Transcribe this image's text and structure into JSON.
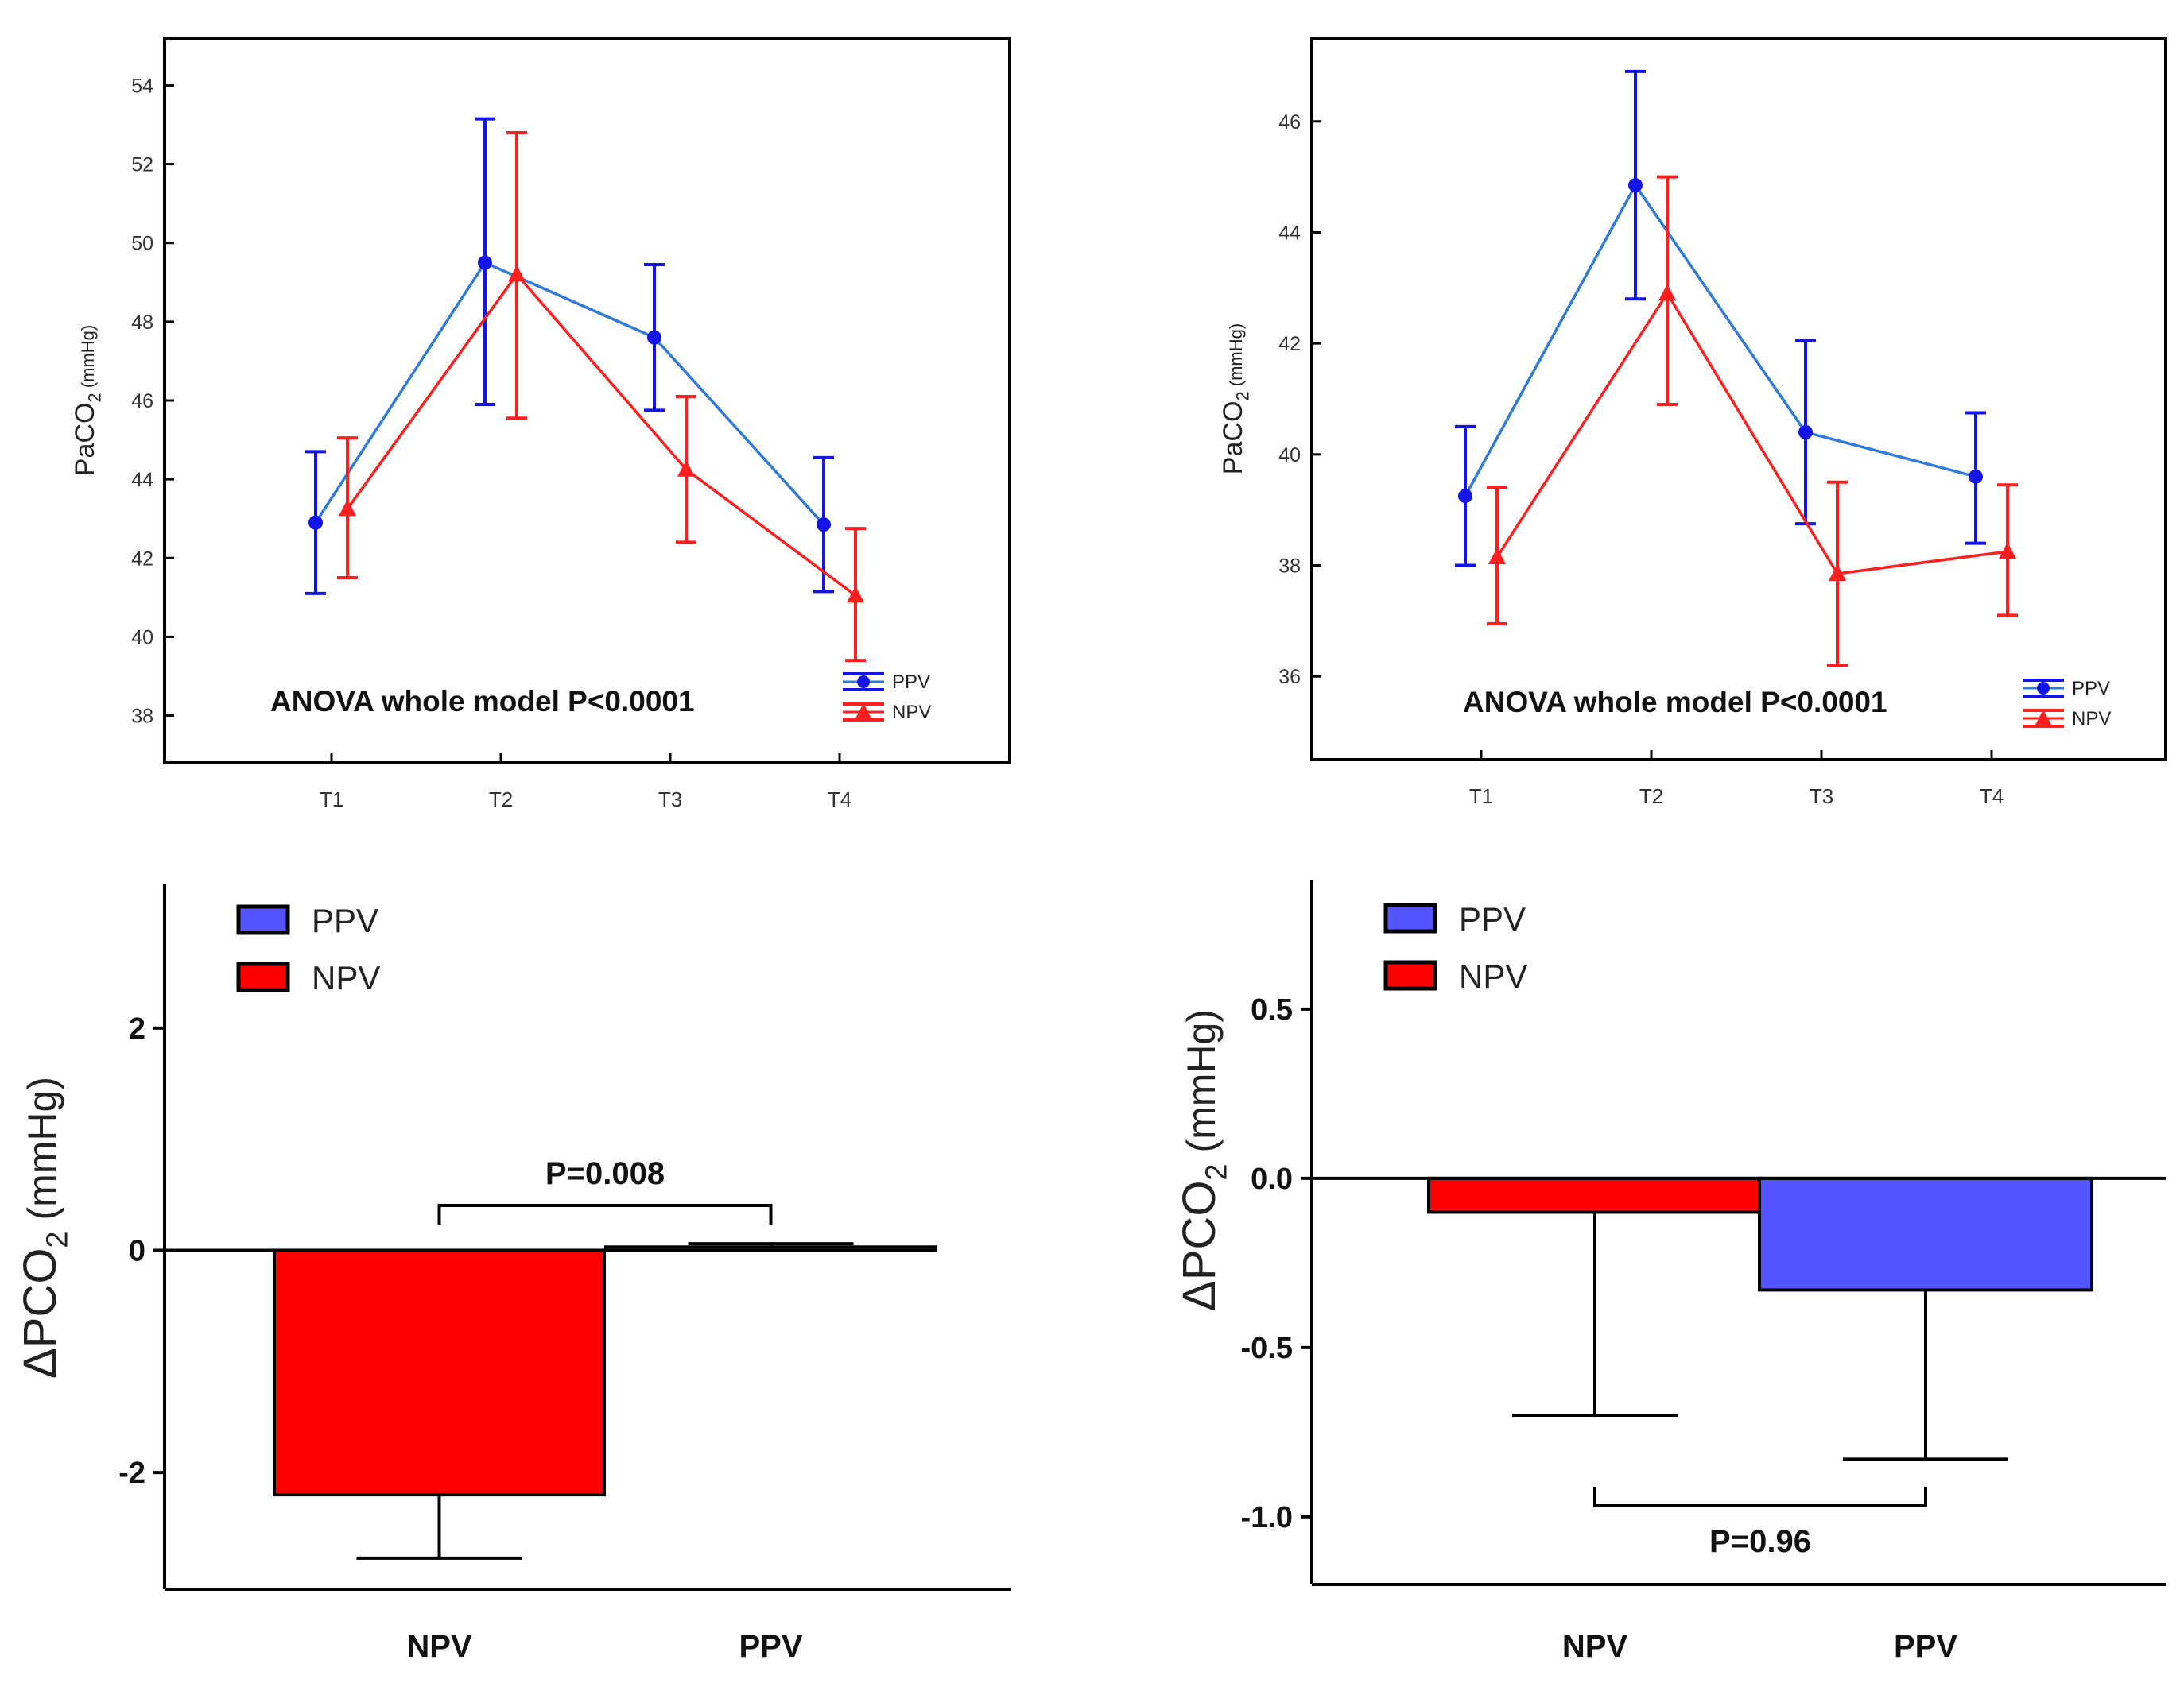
{
  "colors": {
    "ppv_line": "#2f7bdb",
    "ppv_marker": "#1414e6",
    "npv": "#ff1f1f",
    "ppv_bar": "#5555ff",
    "npv_bar": "#ff0000",
    "axis": "#000000"
  },
  "chart_data": [
    {
      "type": "line",
      "panel": "top-left",
      "categories": [
        "T1",
        "T2",
        "T3",
        "T4"
      ],
      "ylabel_main": "PaCO",
      "ylabel_sub": "2",
      "ylabel_unit": " (mmHg)",
      "annotation": "ANOVA  whole  model  P<0.0001",
      "ylim": [
        36.8,
        55.2
      ],
      "yticks": [
        38,
        40,
        42,
        44,
        46,
        48,
        50,
        52,
        54
      ],
      "legend_position": "bottom-right",
      "series": [
        {
          "name": "PPV",
          "marker": "circle",
          "values": [
            42.9,
            49.5,
            47.6,
            42.85
          ],
          "lower": [
            41.1,
            45.9,
            45.75,
            41.15
          ],
          "upper": [
            44.7,
            53.15,
            49.45,
            44.55
          ]
        },
        {
          "name": "NPV",
          "marker": "triangle",
          "values": [
            43.25,
            49.2,
            44.25,
            41.05
          ],
          "lower": [
            41.5,
            45.55,
            42.4,
            39.4
          ],
          "upper": [
            45.05,
            52.8,
            46.1,
            42.75
          ]
        }
      ]
    },
    {
      "type": "line",
      "panel": "top-right",
      "categories": [
        "T1",
        "T2",
        "T3",
        "T4"
      ],
      "ylabel_main": "PaCO",
      "ylabel_sub": "2",
      "ylabel_unit": " (mmHg)",
      "annotation": "ANOVA  whole  model  P<0.0001",
      "ylim": [
        34.5,
        47.5
      ],
      "yticks": [
        36,
        38,
        40,
        42,
        44,
        46
      ],
      "legend_position": "bottom-right",
      "series": [
        {
          "name": "PPV",
          "marker": "circle",
          "values": [
            39.25,
            44.85,
            40.4,
            39.6
          ],
          "lower": [
            38.0,
            42.8,
            38.75,
            38.4
          ],
          "upper": [
            40.5,
            46.9,
            42.05,
            40.75
          ]
        },
        {
          "name": "NPV",
          "marker": "triangle",
          "values": [
            38.15,
            42.9,
            37.85,
            38.25
          ],
          "lower": [
            36.95,
            40.9,
            36.2,
            37.1
          ],
          "upper": [
            39.4,
            45.0,
            39.5,
            39.45
          ]
        }
      ]
    },
    {
      "type": "bar",
      "panel": "bottom-left",
      "categories": [
        "NPV",
        "PPV"
      ],
      "ylabel_main": "ΔPCO",
      "ylabel_sub": "2",
      "ylabel_unit": " (mmHg)",
      "ylim": [
        -3.05,
        3.3
      ],
      "yticks": [
        -2,
        0,
        2
      ],
      "ytick_labels": [
        "-2",
        "0",
        "2"
      ],
      "legend_position": "top-left",
      "legend": [
        {
          "name": "PPV",
          "color": "#5555ff"
        },
        {
          "name": "NPV",
          "color": "#ff0000"
        }
      ],
      "series": [
        {
          "values": [
            -2.2,
            0.03
          ],
          "error": [
            0.57,
            0.03
          ],
          "colors": [
            "#ff0000",
            "#5555ff"
          ]
        }
      ],
      "p_label": "P=0.008",
      "p_bracket": "above"
    },
    {
      "type": "bar",
      "panel": "bottom-right",
      "categories": [
        "NPV",
        "PPV"
      ],
      "ylabel_main": "ΔPCO",
      "ylabel_sub": "2",
      "ylabel_unit": " (mmHg)",
      "ylim": [
        -1.2,
        0.88
      ],
      "yticks": [
        -1.0,
        -0.5,
        0.0,
        0.5
      ],
      "ytick_labels": [
        "-1.0",
        "-0.5",
        "0.0",
        "0.5"
      ],
      "legend_position": "top-left",
      "legend": [
        {
          "name": "PPV",
          "color": "#5555ff"
        },
        {
          "name": "NPV",
          "color": "#ff0000"
        }
      ],
      "series": [
        {
          "values": [
            -0.1,
            -0.33
          ],
          "error": [
            0.6,
            0.5
          ],
          "colors": [
            "#ff0000",
            "#5555ff"
          ]
        }
      ],
      "p_label": "P=0.96",
      "p_bracket": "below"
    }
  ]
}
